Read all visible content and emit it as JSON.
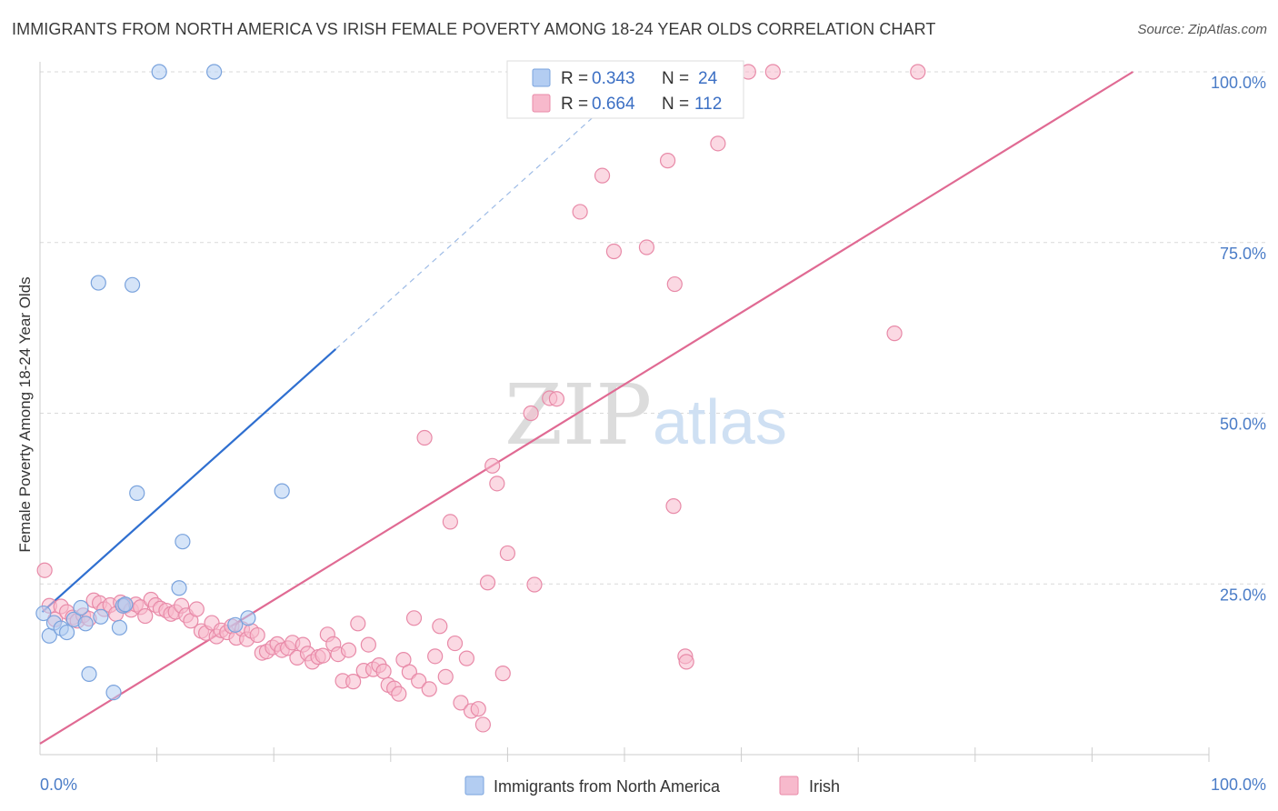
{
  "title": "IMMIGRANTS FROM NORTH AMERICA VS IRISH FEMALE POVERTY AMONG 18-24 YEAR OLDS CORRELATION CHART",
  "source": "Source: ZipAtlas.com",
  "watermark": {
    "zip": "ZIP",
    "atlas": "atlas"
  },
  "colors": {
    "blue_fill": "#b3cdf2",
    "blue_stroke": "#7aa3dd",
    "blue_line": "#2f6fd0",
    "pink_fill": "#f7b9cc",
    "pink_stroke": "#e88aa8",
    "pink_line": "#e06a93",
    "grid": "#d9d9d9",
    "tick_label": "#4a7cc7"
  },
  "legend": {
    "rows": [
      {
        "r_label": "R = ",
        "r_value": "0.343",
        "n_label": "N = ",
        "n_value": "24"
      },
      {
        "r_label": "R = ",
        "r_value": "0.664",
        "n_label": "N = ",
        "n_value": "112"
      }
    ]
  },
  "chart_data": {
    "type": "scatter",
    "xlabel": "",
    "ylabel": "Female Poverty Among 18-24 Year Olds",
    "xlim": [
      0,
      100
    ],
    "ylim": [
      0,
      100
    ],
    "x_tick_labels": [
      "0.0%",
      "100.0%"
    ],
    "y_ticks": [
      25,
      50,
      75,
      100
    ],
    "y_tick_labels": [
      "25.0%",
      "50.0%",
      "75.0%",
      "100.0%"
    ],
    "grid": true,
    "legend_position": "top-center",
    "series": [
      {
        "name": "Immigrants from North America",
        "r": 0.343,
        "n": 24,
        "trend": {
          "x0": 0.2,
          "y0": 20.9,
          "x1": 25.3,
          "y1": 59.4,
          "dashed_to_x": 50,
          "dashed_to_y": 97.5
        },
        "points": [
          [
            0.3,
            20.7
          ],
          [
            0.8,
            17.4
          ],
          [
            1.2,
            19.3
          ],
          [
            1.8,
            18.5
          ],
          [
            2.3,
            17.9
          ],
          [
            2.9,
            19.8
          ],
          [
            3.5,
            21.5
          ],
          [
            3.9,
            19.2
          ],
          [
            4.2,
            11.8
          ],
          [
            5.0,
            69.1
          ],
          [
            5.2,
            20.2
          ],
          [
            6.3,
            9.1
          ],
          [
            6.8,
            18.6
          ],
          [
            7.1,
            21.8
          ],
          [
            7.3,
            22.0
          ],
          [
            7.9,
            68.8
          ],
          [
            8.3,
            38.3
          ],
          [
            10.2,
            100.0
          ],
          [
            11.9,
            24.4
          ],
          [
            12.2,
            31.2
          ],
          [
            14.9,
            100.0
          ],
          [
            16.7,
            19.0
          ],
          [
            17.8,
            20.0
          ],
          [
            20.7,
            38.6
          ]
        ]
      },
      {
        "name": "Irish",
        "r": 0.664,
        "n": 112,
        "trend": {
          "x0": 0,
          "y0": 1.6,
          "x1": 93.5,
          "y1": 100.0
        },
        "points": [
          [
            0.4,
            27.0
          ],
          [
            0.8,
            21.8
          ],
          [
            1.3,
            19.8
          ],
          [
            1.8,
            21.7
          ],
          [
            2.3,
            20.9
          ],
          [
            2.8,
            20.1
          ],
          [
            3.2,
            19.6
          ],
          [
            3.7,
            20.4
          ],
          [
            4.2,
            19.9
          ],
          [
            4.6,
            22.6
          ],
          [
            5.1,
            22.2
          ],
          [
            5.5,
            21.3
          ],
          [
            6.0,
            21.9
          ],
          [
            6.5,
            20.6
          ],
          [
            6.9,
            22.3
          ],
          [
            7.3,
            21.8
          ],
          [
            7.8,
            21.2
          ],
          [
            8.2,
            22.0
          ],
          [
            8.6,
            21.6
          ],
          [
            9.0,
            20.3
          ],
          [
            9.5,
            22.7
          ],
          [
            9.9,
            21.9
          ],
          [
            10.3,
            21.4
          ],
          [
            10.8,
            21.1
          ],
          [
            11.2,
            20.6
          ],
          [
            11.6,
            20.9
          ],
          [
            12.1,
            21.8
          ],
          [
            12.5,
            20.4
          ],
          [
            12.9,
            19.6
          ],
          [
            13.4,
            21.3
          ],
          [
            13.8,
            18.1
          ],
          [
            14.2,
            17.8
          ],
          [
            14.7,
            19.3
          ],
          [
            15.1,
            17.3
          ],
          [
            15.5,
            18.2
          ],
          [
            16.0,
            17.9
          ],
          [
            16.4,
            18.8
          ],
          [
            16.8,
            17.1
          ],
          [
            17.3,
            18.4
          ],
          [
            17.7,
            16.9
          ],
          [
            18.1,
            18.1
          ],
          [
            18.6,
            17.5
          ],
          [
            19.0,
            14.9
          ],
          [
            19.4,
            15.1
          ],
          [
            19.9,
            15.7
          ],
          [
            20.3,
            16.2
          ],
          [
            20.7,
            15.3
          ],
          [
            21.2,
            15.6
          ],
          [
            21.6,
            16.4
          ],
          [
            22.0,
            14.2
          ],
          [
            22.5,
            16.1
          ],
          [
            22.9,
            14.8
          ],
          [
            23.3,
            13.6
          ],
          [
            23.8,
            14.3
          ],
          [
            24.2,
            14.5
          ],
          [
            24.6,
            17.6
          ],
          [
            25.1,
            16.2
          ],
          [
            25.5,
            14.7
          ],
          [
            25.9,
            10.8
          ],
          [
            26.4,
            15.3
          ],
          [
            26.8,
            10.7
          ],
          [
            27.2,
            19.2
          ],
          [
            27.7,
            12.3
          ],
          [
            28.1,
            16.1
          ],
          [
            28.5,
            12.5
          ],
          [
            29.0,
            13.1
          ],
          [
            29.4,
            12.2
          ],
          [
            29.8,
            10.2
          ],
          [
            30.3,
            9.7
          ],
          [
            30.7,
            8.9
          ],
          [
            31.1,
            13.9
          ],
          [
            31.6,
            12.1
          ],
          [
            32.0,
            20.0
          ],
          [
            32.4,
            10.8
          ],
          [
            32.9,
            46.4
          ],
          [
            33.3,
            9.6
          ],
          [
            33.8,
            14.4
          ],
          [
            34.2,
            18.8
          ],
          [
            34.7,
            11.4
          ],
          [
            35.1,
            34.1
          ],
          [
            35.5,
            16.3
          ],
          [
            36.0,
            7.6
          ],
          [
            36.5,
            14.1
          ],
          [
            36.9,
            6.4
          ],
          [
            37.5,
            6.7
          ],
          [
            37.9,
            4.4
          ],
          [
            38.3,
            25.2
          ],
          [
            38.7,
            42.3
          ],
          [
            39.1,
            39.7
          ],
          [
            39.6,
            11.9
          ],
          [
            40.0,
            29.5
          ],
          [
            42.0,
            50.0
          ],
          [
            42.3,
            24.9
          ],
          [
            43.6,
            52.2
          ],
          [
            44.2,
            52.1
          ],
          [
            46.2,
            79.5
          ],
          [
            47.3,
            100.0
          ],
          [
            48.1,
            84.8
          ],
          [
            49.1,
            73.7
          ],
          [
            51.9,
            74.3
          ],
          [
            53.3,
            100.0
          ],
          [
            53.7,
            87.0
          ],
          [
            54.2,
            36.4
          ],
          [
            54.3,
            68.9
          ],
          [
            55.2,
            14.4
          ],
          [
            55.3,
            13.6
          ],
          [
            58.0,
            89.5
          ],
          [
            58.6,
            100.0
          ],
          [
            60.6,
            100.0
          ],
          [
            62.7,
            100.0
          ],
          [
            73.1,
            61.7
          ],
          [
            75.1,
            100.0
          ]
        ]
      }
    ]
  }
}
